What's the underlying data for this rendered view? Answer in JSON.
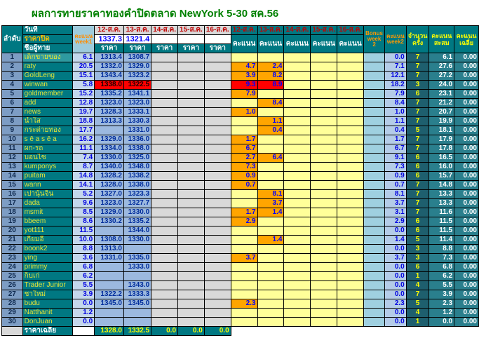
{
  "title": "ผลการทายราคาทองคำปิดตลาด NewYork 5-30 สค.56",
  "colors": {
    "title_green": "#008000",
    "header_teal": "#007882",
    "date_red": "#C00000",
    "score_orange": "#FFA500",
    "score_empty_yellow": "#FFFF99",
    "highlight_red": "#FF0000",
    "price_blue": "#9CB9DF",
    "week1_blue": "#C4D7EC",
    "rank_blue": "#7D9DC4",
    "bonus_blue": "#9FD0E0",
    "empty_gray": "#D9D9D9",
    "count_teal": "#1E5F6E",
    "total_teal": "#2A7F8D",
    "name_yellow": "#E3E437"
  },
  "header": {
    "rank": "ลำดับ",
    "date_label": "วันที่",
    "close_label": "ราคาปิด",
    "name_label": "ชื่อผู้ทาย",
    "week1_label": "คะแนน week1",
    "price_dates": [
      "12-ส.ค.",
      "13-ส.ค.",
      "14-ส.ค.",
      "15-ส.ค.",
      "16-ส.ค."
    ],
    "close_prices": [
      "1337.3",
      "1321.4",
      "",
      "",
      ""
    ],
    "price_sub": "ราคา",
    "score_dates": [
      "12-ส.ค.",
      "13-ส.ค.",
      "14-ส.ค.",
      "15-ส.ค.",
      "16-ส.ค."
    ],
    "score_sub": "คะแนน",
    "bonus_label": "Bonus week 2",
    "week2_label": "คะแนน week2",
    "count_label": "จำนวนครั้ง",
    "total_label": "คะแนนสะสม",
    "avg_label": "คะแนนเฉลี่ย"
  },
  "rows": [
    {
      "rank": "1",
      "name": "เด็กขายของ",
      "week1": "6.1",
      "prices": [
        "1313.4",
        "1308.7",
        "",
        "",
        ""
      ],
      "scores": [
        "",
        "",
        "",
        "",
        ""
      ],
      "bonus": "",
      "week2": "0.0",
      "count": "7",
      "total": "6.1",
      "avg": "0.00",
      "highlight": true,
      "red": false
    },
    {
      "rank": "2",
      "name": "raty",
      "week1": "20.5",
      "prices": [
        "1332.0",
        "1329.0",
        "",
        "",
        ""
      ],
      "scores": [
        "4.7",
        "2.4",
        "",
        "",
        ""
      ],
      "bonus": "",
      "week2": "7.1",
      "count": "7",
      "total": "27.6",
      "avg": "0.00",
      "highlight": false,
      "red": false
    },
    {
      "rank": "3",
      "name": "GoldLeng",
      "week1": "15.1",
      "prices": [
        "1343.4",
        "1323.2",
        "",
        "",
        ""
      ],
      "scores": [
        "3.9",
        "8.2",
        "",
        "",
        ""
      ],
      "bonus": "",
      "week2": "12.1",
      "count": "7",
      "total": "27.2",
      "avg": "0.00",
      "highlight": false,
      "red": false
    },
    {
      "rank": "4",
      "name": "winwan",
      "week1": "5.8",
      "prices": [
        "1338.0",
        "1322.5",
        "",
        "",
        ""
      ],
      "scores": [
        "9.3",
        "8.9",
        "",
        "",
        ""
      ],
      "bonus": "",
      "week2": "18.2",
      "count": "3",
      "total": "24.0",
      "avg": "0.00",
      "highlight": false,
      "red": true
    },
    {
      "rank": "5",
      "name": "goldmember",
      "week1": "15.2",
      "prices": [
        "1335.2",
        "1341.1",
        "",
        "",
        ""
      ],
      "scores": [
        "7.9",
        "",
        "",
        "",
        ""
      ],
      "bonus": "",
      "week2": "7.9",
      "count": "6",
      "total": "23.1",
      "avg": "0.00",
      "highlight": false,
      "red": false
    },
    {
      "rank": "6",
      "name": "add",
      "week1": "12.8",
      "prices": [
        "1323.0",
        "1323.0",
        "",
        "",
        ""
      ],
      "scores": [
        "",
        "8.4",
        "",
        "",
        ""
      ],
      "bonus": "",
      "week2": "8.4",
      "count": "7",
      "total": "21.2",
      "avg": "0.00",
      "highlight": false,
      "red": false
    },
    {
      "rank": "7",
      "name": "news",
      "week1": "19.7",
      "prices": [
        "1328.3",
        "1333.1",
        "",
        "",
        ""
      ],
      "scores": [
        "1.0",
        "",
        "",
        "",
        ""
      ],
      "bonus": "",
      "week2": "1.0",
      "count": "7",
      "total": "20.7",
      "avg": "0.00",
      "highlight": false,
      "red": false
    },
    {
      "rank": "8",
      "name": "น้ำใส",
      "week1": "18.8",
      "prices": [
        "1313.3",
        "1330.3",
        "",
        "",
        ""
      ],
      "scores": [
        "",
        "1.1",
        "",
        "",
        ""
      ],
      "bonus": "",
      "week2": "1.1",
      "count": "7",
      "total": "19.9",
      "avg": "0.00",
      "highlight": false,
      "red": false
    },
    {
      "rank": "9",
      "name": "กระต่ายทอง",
      "week1": "17.7",
      "prices": [
        "",
        "1331.0",
        "",
        "",
        ""
      ],
      "scores": [
        "",
        "0.4",
        "",
        "",
        ""
      ],
      "bonus": "",
      "week2": "0.4",
      "count": "5",
      "total": "18.1",
      "avg": "0.00",
      "highlight": false,
      "red": false
    },
    {
      "rank": "10",
      "name": "s ē a s ē a",
      "week1": "16.2",
      "prices": [
        "1329.0",
        "1336.0",
        "",
        "",
        ""
      ],
      "scores": [
        "1.7",
        "",
        "",
        "",
        ""
      ],
      "bonus": "",
      "week2": "1.7",
      "count": "7",
      "total": "17.9",
      "avg": "0.00",
      "highlight": false,
      "red": false
    },
    {
      "rank": "11",
      "name": "ผก-รถ",
      "week1": "11.1",
      "prices": [
        "1334.0",
        "1338.0",
        "",
        "",
        ""
      ],
      "scores": [
        "6.7",
        "",
        "",
        "",
        ""
      ],
      "bonus": "",
      "week2": "6.7",
      "count": "7",
      "total": "17.8",
      "avg": "0.00",
      "highlight": false,
      "red": false
    },
    {
      "rank": "12",
      "name": "บอนไซ",
      "week1": "7.4",
      "prices": [
        "1330.0",
        "1325.0",
        "",
        "",
        ""
      ],
      "scores": [
        "2.7",
        "6.4",
        "",
        "",
        ""
      ],
      "bonus": "",
      "week2": "9.1",
      "count": "6",
      "total": "16.5",
      "avg": "0.00",
      "highlight": false,
      "red": false
    },
    {
      "rank": "13",
      "name": "kumponys",
      "week1": "8.7",
      "prices": [
        "1340.0",
        "1348.0",
        "",
        "",
        ""
      ],
      "scores": [
        "7.3",
        "",
        "",
        "",
        ""
      ],
      "bonus": "",
      "week2": "7.3",
      "count": "6",
      "total": "16.0",
      "avg": "0.00",
      "highlight": false,
      "red": false
    },
    {
      "rank": "14",
      "name": "puitam",
      "week1": "14.8",
      "prices": [
        "1328.2",
        "1338.2",
        "",
        "",
        ""
      ],
      "scores": [
        "0.9",
        "",
        "",
        "",
        ""
      ],
      "bonus": "",
      "week2": "0.9",
      "count": "6",
      "total": "15.7",
      "avg": "0.00",
      "highlight": false,
      "red": false
    },
    {
      "rank": "15",
      "name": "wann",
      "week1": "14.1",
      "prices": [
        "1328.0",
        "1338.0",
        "",
        "",
        ""
      ],
      "scores": [
        "0.7",
        "",
        "",
        "",
        ""
      ],
      "bonus": "",
      "week2": "0.7",
      "count": "7",
      "total": "14.8",
      "avg": "0.00",
      "highlight": false,
      "red": false
    },
    {
      "rank": "16",
      "name": "เปานุ้นจิ้น",
      "week1": "5.2",
      "prices": [
        "1327.0",
        "1323.3",
        "",
        "",
        ""
      ],
      "scores": [
        "",
        "8.1",
        "",
        "",
        ""
      ],
      "bonus": "",
      "week2": "8.1",
      "count": "7",
      "total": "13.3",
      "avg": "0.00",
      "highlight": false,
      "red": false
    },
    {
      "rank": "17",
      "name": "dada",
      "week1": "9.6",
      "prices": [
        "1323.0",
        "1327.7",
        "",
        "",
        ""
      ],
      "scores": [
        "",
        "3.7",
        "",
        "",
        ""
      ],
      "bonus": "",
      "week2": "3.7",
      "count": "7",
      "total": "13.3",
      "avg": "0.00",
      "highlight": false,
      "red": false
    },
    {
      "rank": "18",
      "name": "msmit",
      "week1": "8.5",
      "prices": [
        "1329.0",
        "1330.0",
        "",
        "",
        ""
      ],
      "scores": [
        "1.7",
        "1.4",
        "",
        "",
        ""
      ],
      "bonus": "",
      "week2": "3.1",
      "count": "7",
      "total": "11.6",
      "avg": "0.00",
      "highlight": false,
      "red": false
    },
    {
      "rank": "19",
      "name": "bbeem",
      "week1": "8.6",
      "prices": [
        "1330.2",
        "1335.2",
        "",
        "",
        ""
      ],
      "scores": [
        "2.9",
        "",
        "",
        "",
        ""
      ],
      "bonus": "",
      "week2": "2.9",
      "count": "6",
      "total": "11.5",
      "avg": "0.00",
      "highlight": false,
      "red": false
    },
    {
      "rank": "20",
      "name": "yot111",
      "week1": "11.5",
      "prices": [
        "",
        "1344.0",
        "",
        "",
        ""
      ],
      "scores": [
        "",
        "",
        "",
        "",
        ""
      ],
      "bonus": "",
      "week2": "0.0",
      "count": "6",
      "total": "11.5",
      "avg": "0.00",
      "highlight": false,
      "red": false
    },
    {
      "rank": "21",
      "name": "เกี้ยมอี๋",
      "week1": "10.0",
      "prices": [
        "1308.0",
        "1330.0",
        "",
        "",
        ""
      ],
      "scores": [
        "",
        "1.4",
        "",
        "",
        ""
      ],
      "bonus": "",
      "week2": "1.4",
      "count": "5",
      "total": "11.4",
      "avg": "0.00",
      "highlight": false,
      "red": false
    },
    {
      "rank": "22",
      "name": "boonk2",
      "week1": "8.8",
      "prices": [
        "1313.0",
        "",
        "",
        "",
        ""
      ],
      "scores": [
        "",
        "",
        "",
        "",
        ""
      ],
      "bonus": "",
      "week2": "0.0",
      "count": "3",
      "total": "8.8",
      "avg": "0.00",
      "highlight": false,
      "red": false
    },
    {
      "rank": "23",
      "name": "ying",
      "week1": "3.6",
      "prices": [
        "1331.0",
        "1335.0",
        "",
        "",
        ""
      ],
      "scores": [
        "3.7",
        "",
        "",
        "",
        ""
      ],
      "bonus": "",
      "week2": "3.7",
      "count": "3",
      "total": "7.3",
      "avg": "0.00",
      "highlight": false,
      "red": false
    },
    {
      "rank": "24",
      "name": "primmy",
      "week1": "6.8",
      "prices": [
        "",
        "1333.0",
        "",
        "",
        ""
      ],
      "scores": [
        "",
        "",
        "",
        "",
        ""
      ],
      "bonus": "",
      "week2": "0.0",
      "count": "6",
      "total": "6.8",
      "avg": "0.00",
      "highlight": false,
      "red": false
    },
    {
      "rank": "25",
      "name": "ก็บเก่",
      "week1": "6.2",
      "prices": [
        "",
        "",
        "",
        "",
        ""
      ],
      "scores": [
        "",
        "",
        "",
        "",
        ""
      ],
      "bonus": "",
      "week2": "0.0",
      "count": "1",
      "total": "6.2",
      "avg": "0.00",
      "highlight": false,
      "red": false
    },
    {
      "rank": "26",
      "name": "Trader Junior",
      "week1": "5.5",
      "prices": [
        "",
        "1343.0",
        "",
        "",
        ""
      ],
      "scores": [
        "",
        "",
        "",
        "",
        ""
      ],
      "bonus": "",
      "week2": "0.0",
      "count": "4",
      "total": "5.5",
      "avg": "0.00",
      "highlight": false,
      "red": false
    },
    {
      "rank": "27",
      "name": "ชาใหม่",
      "week1": "3.9",
      "prices": [
        "1322.2",
        "1333.3",
        "",
        "",
        ""
      ],
      "scores": [
        "",
        "",
        "",
        "",
        ""
      ],
      "bonus": "",
      "week2": "0.0",
      "count": "7",
      "total": "3.9",
      "avg": "0.00",
      "highlight": false,
      "red": false
    },
    {
      "rank": "28",
      "name": "budu",
      "week1": "0.0",
      "prices": [
        "1345.0",
        "1345.0",
        "",
        "",
        ""
      ],
      "scores": [
        "2.3",
        "",
        "",
        "",
        ""
      ],
      "bonus": "",
      "week2": "2.3",
      "count": "5",
      "total": "2.3",
      "avg": "0.00",
      "highlight": false,
      "red": false
    },
    {
      "rank": "29",
      "name": "Natthanit",
      "week1": "1.2",
      "prices": [
        "",
        "",
        "",
        "",
        ""
      ],
      "scores": [
        "",
        "",
        "",
        "",
        ""
      ],
      "bonus": "",
      "week2": "0.0",
      "count": "4",
      "total": "1.2",
      "avg": "0.00",
      "highlight": false,
      "red": false
    },
    {
      "rank": "30",
      "name": "DonJuan",
      "week1": "0.0",
      "prices": [
        "",
        "",
        "",
        "",
        ""
      ],
      "scores": [
        "",
        "",
        "",
        "",
        ""
      ],
      "bonus": "",
      "week2": "0.0",
      "count": "1",
      "total": "0.0",
      "avg": "0.00",
      "highlight": false,
      "red": false
    }
  ],
  "footer": {
    "label": "ราคาเฉลี่ย",
    "avg_prices": [
      "1328.0",
      "1332.5",
      "0.0",
      "0.0",
      "0.0"
    ]
  }
}
